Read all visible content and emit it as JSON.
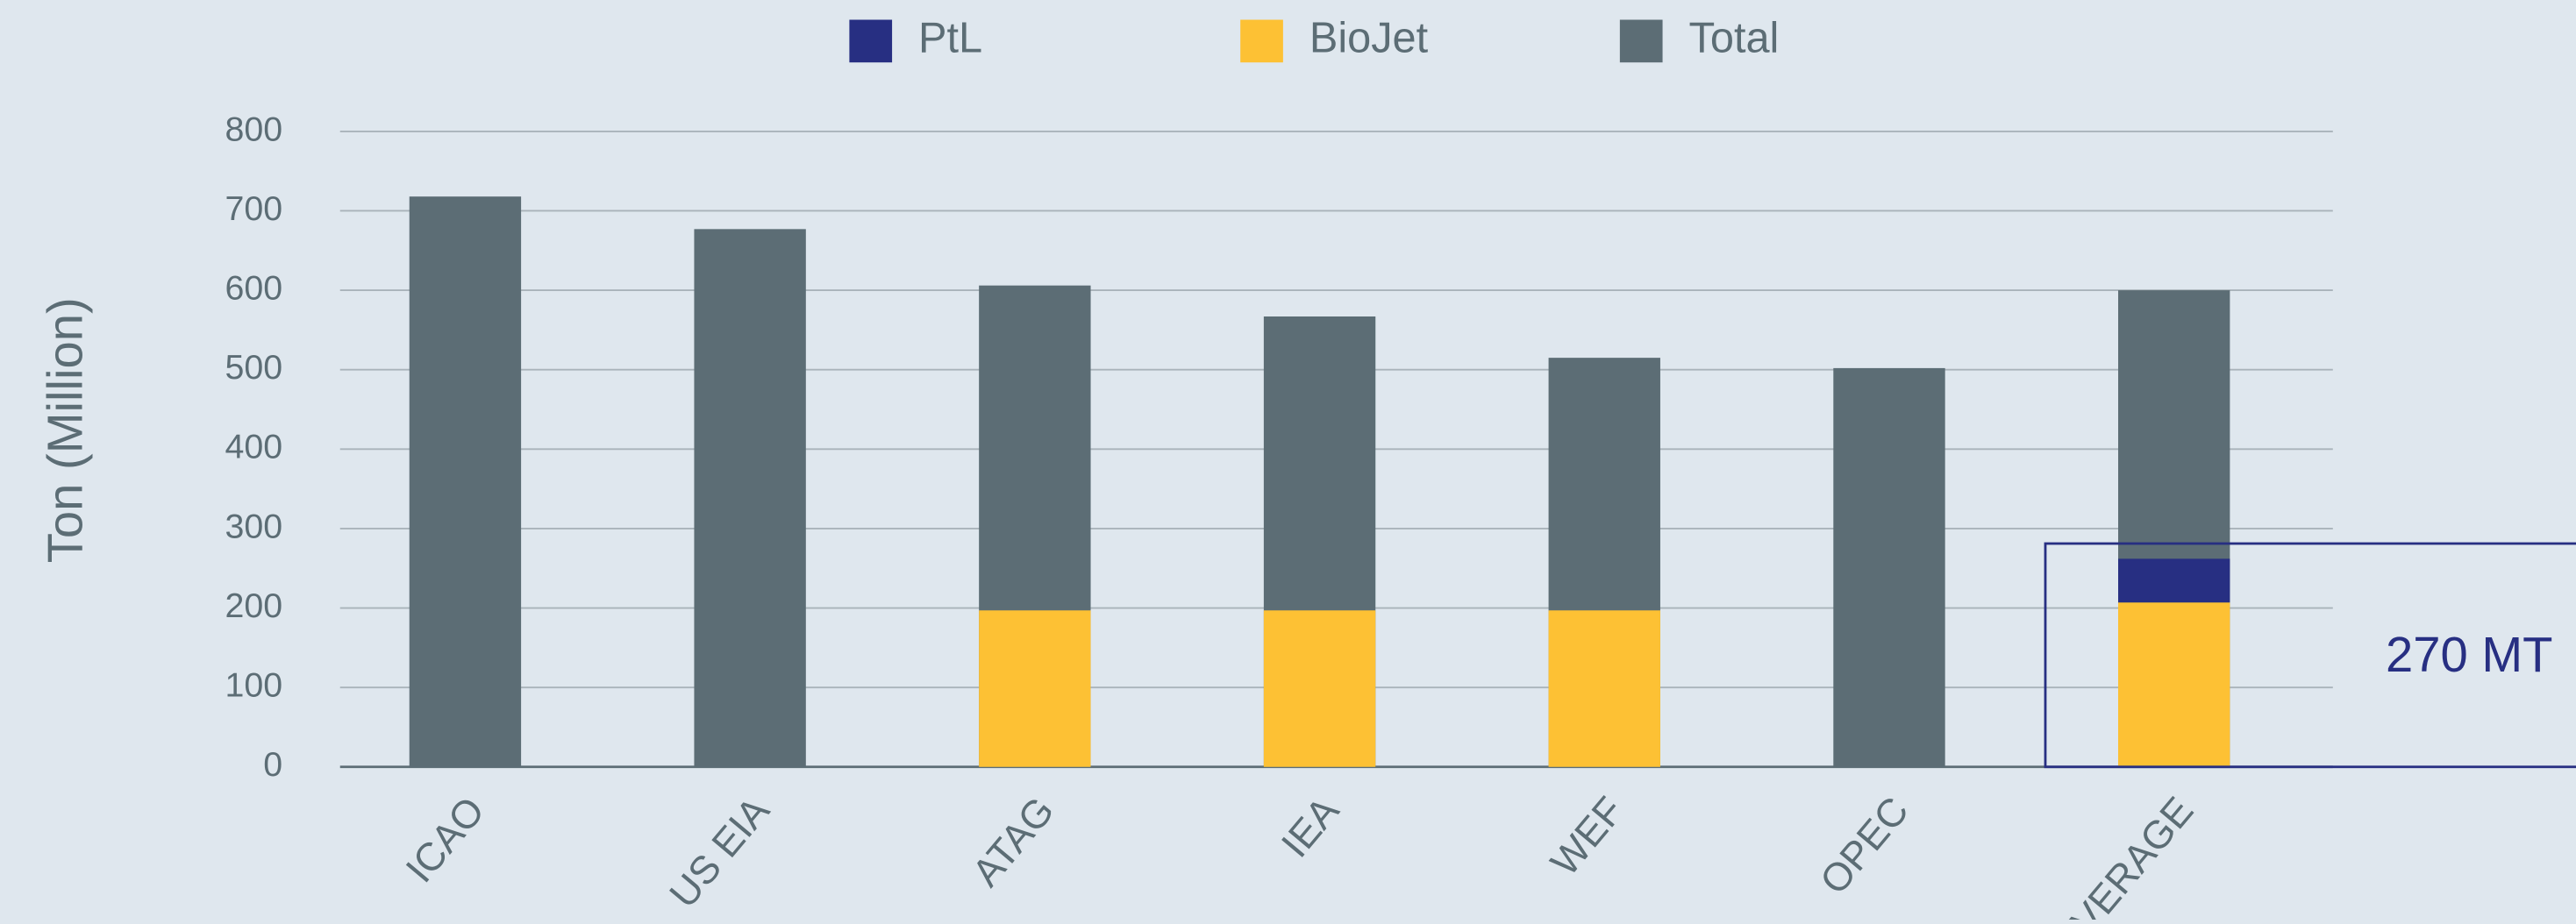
{
  "chart_data": {
    "type": "bar",
    "y_label": "Ton (Million)",
    "categories": [
      "ICAO",
      "US EIA",
      "ATAG",
      "IEA",
      "WEF",
      "OPEC",
      "AVERAGE"
    ],
    "series": [
      {
        "name": "PtL",
        "color": "#272f82",
        "values": [
          null,
          null,
          null,
          null,
          null,
          null,
          55
        ]
      },
      {
        "name": "BioJet",
        "color": "#fdc134",
        "values": [
          null,
          null,
          197,
          197,
          197,
          null,
          207
        ]
      },
      {
        "name": "Total",
        "color": "#5c6d75",
        "behind": true,
        "values": [
          718,
          677,
          606,
          567,
          515,
          502,
          600
        ]
      }
    ],
    "annotation": "270 MT",
    "ylim": [
      0,
      800
    ],
    "yticks": [
      0,
      100,
      200,
      300,
      400,
      500,
      600,
      700,
      800
    ],
    "grid": true
  }
}
